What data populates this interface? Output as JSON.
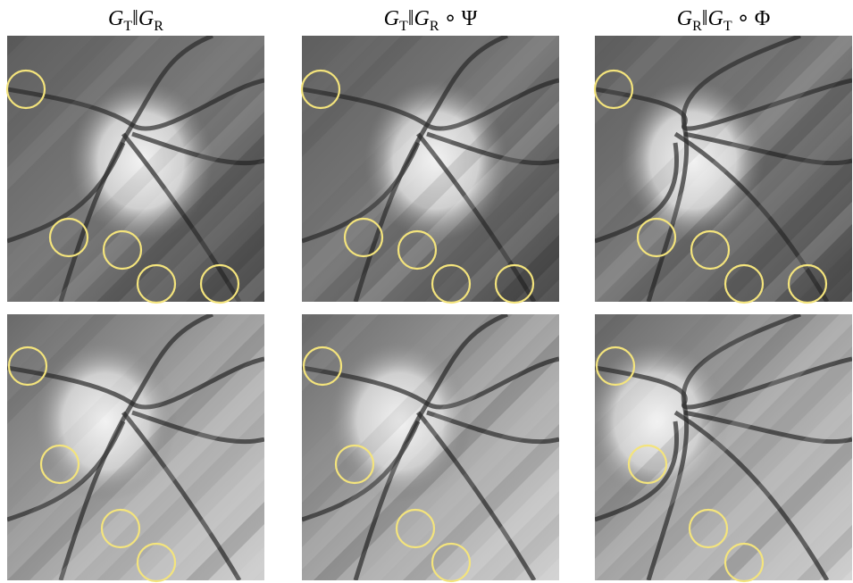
{
  "headers": [
    [
      {
        "t": "G",
        "sub": "T"
      },
      {
        "t": "‖"
      },
      {
        "t": "G",
        "sub": "R"
      }
    ],
    [
      {
        "t": "G",
        "sub": "T"
      },
      {
        "t": "‖"
      },
      {
        "t": "G",
        "sub": "R"
      },
      {
        "t": "∘"
      },
      {
        "t": "Ψ"
      }
    ],
    [
      {
        "t": "G",
        "sub": "R"
      },
      {
        "t": "‖"
      },
      {
        "t": "G",
        "sub": "T"
      },
      {
        "t": "∘"
      },
      {
        "t": "Φ"
      }
    ]
  ]
}
